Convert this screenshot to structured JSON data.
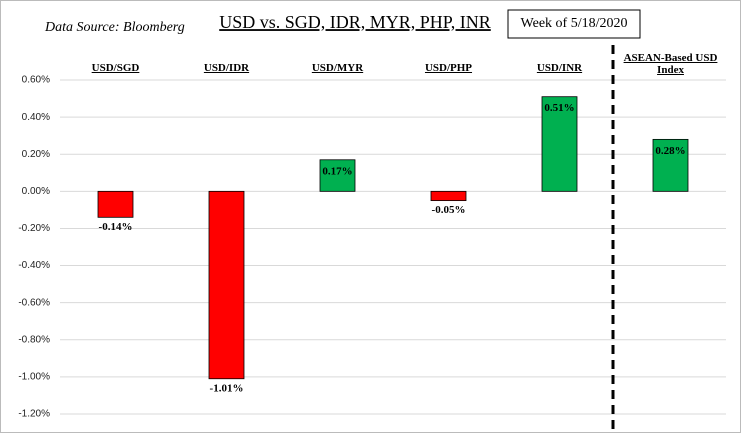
{
  "chart_data": {
    "type": "bar",
    "title": "USD vs. SGD, IDR, MYR, PHP, INR",
    "subtitle": "Data Source: Bloomberg",
    "annotation": "Week of 5/18/2020",
    "categories": [
      "USD/SGD",
      "USD/IDR",
      "USD/MYR",
      "USD/PHP",
      "USD/INR",
      "ASEAN-Based USD Index"
    ],
    "values": [
      -0.14,
      -1.01,
      0.17,
      -0.05,
      0.51,
      0.28
    ],
    "value_labels": [
      "-0.14%",
      "-1.01%",
      "0.17%",
      "-0.05%",
      "0.51%",
      "0.28%"
    ],
    "colors": [
      "#ff0000",
      "#ff0000",
      "#00b050",
      "#ff0000",
      "#00b050",
      "#00b050"
    ],
    "ylim": [
      -1.2,
      0.6
    ],
    "yticks": [
      {
        "value": 0.6,
        "label": "0.60%"
      },
      {
        "value": 0.4,
        "label": "0.40%"
      },
      {
        "value": 0.2,
        "label": "0.20%"
      },
      {
        "value": 0,
        "label": "0.00%"
      },
      {
        "value": -0.2,
        "label": "-0.20%"
      },
      {
        "value": -0.4,
        "label": "-0.40%"
      },
      {
        "value": -0.6,
        "label": "-0.60%"
      },
      {
        "value": -0.8,
        "label": "-0.80%"
      },
      {
        "value": -1,
        "label": "-1.00%"
      },
      {
        "value": -1.2,
        "label": "-1.20%"
      }
    ],
    "grid": true
  }
}
